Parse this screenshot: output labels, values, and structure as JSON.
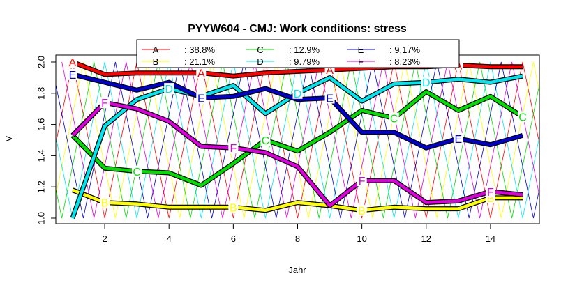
{
  "chart_data": {
    "type": "line",
    "title": "PYYW604 - CMJ: Work conditions: stress",
    "xlabel": "Jahr",
    "ylabel": "V",
    "xlim": [
      1,
      15
    ],
    "ylim": [
      1.0,
      2.0
    ],
    "x_ticks": [
      2,
      4,
      6,
      8,
      10,
      12,
      14
    ],
    "y_ticks": [
      1.0,
      1.2,
      1.4,
      1.6,
      1.8,
      2.0
    ],
    "x_tick_labels": [
      "2",
      "4",
      "6",
      "8",
      "10",
      "12",
      "14"
    ],
    "y_tick_labels": [
      "1.0",
      "1.2",
      "1.4",
      "1.6",
      "1.8",
      "2.0"
    ],
    "legend_position": "top",
    "x": [
      1,
      2,
      3,
      4,
      5,
      6,
      7,
      8,
      9,
      10,
      11,
      12,
      13,
      14,
      15
    ],
    "series": [
      {
        "name": "A",
        "percent": ": 38.8%",
        "color": "#ff0000",
        "values": [
          2.0,
          1.92,
          1.93,
          1.93,
          1.93,
          1.91,
          1.93,
          1.94,
          1.95,
          1.96,
          1.97,
          1.97,
          1.98,
          1.97,
          1.97
        ]
      },
      {
        "name": "B",
        "percent": ": 21.1%",
        "color": "#ffff00",
        "values": [
          1.18,
          1.1,
          1.09,
          1.07,
          1.07,
          1.07,
          1.05,
          1.1,
          1.08,
          1.05,
          1.07,
          1.06,
          1.06,
          1.13,
          1.13
        ]
      },
      {
        "name": "C",
        "percent": ": 12.9%",
        "color": "#00dd00",
        "values": [
          1.53,
          1.32,
          1.3,
          1.29,
          1.21,
          1.35,
          1.5,
          1.43,
          1.55,
          1.69,
          1.64,
          1.81,
          1.69,
          1.78,
          1.65
        ]
      },
      {
        "name": "D",
        "percent": ": 9.79%",
        "color": "#00e5ee",
        "values": [
          1.0,
          1.59,
          1.76,
          1.83,
          1.78,
          1.85,
          1.67,
          1.8,
          1.9,
          1.75,
          1.86,
          1.87,
          1.89,
          1.87,
          1.91
        ]
      },
      {
        "name": "E",
        "percent": ": 9.17%",
        "color": "#0000cc",
        "values": [
          1.92,
          1.87,
          1.82,
          1.87,
          1.77,
          1.78,
          1.83,
          1.76,
          1.77,
          1.55,
          1.55,
          1.45,
          1.51,
          1.47,
          1.53
        ]
      },
      {
        "name": "F",
        "percent": ": 8.23%",
        "color": "#dd00dd",
        "values": [
          1.53,
          1.74,
          1.7,
          1.62,
          1.46,
          1.45,
          1.42,
          1.33,
          1.08,
          1.24,
          1.24,
          1.1,
          1.11,
          1.17,
          1.15
        ]
      }
    ]
  }
}
